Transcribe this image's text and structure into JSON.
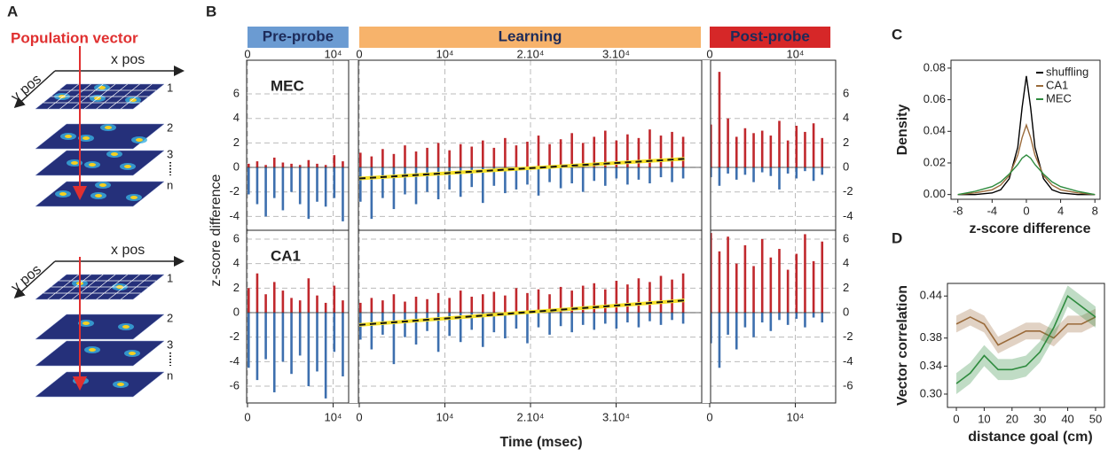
{
  "diagram": {
    "panel_label": "A",
    "title": "Population vector",
    "groups": [
      {
        "x_axis": "x pos",
        "y_axis": "y pos",
        "layers": [
          "1",
          "2",
          "3",
          "n"
        ]
      },
      {
        "x_axis": "x pos",
        "y_axis": "y pos",
        "layers": [
          "1",
          "2",
          "3",
          "n"
        ]
      }
    ]
  },
  "chart_data": [
    {
      "type": "diverging-bar",
      "panel_label": "B",
      "y_label": "z-score difference",
      "x_label": "Time (msec)",
      "grid": true,
      "positive_color": "#c0282d",
      "negative_color": "#3d6fae",
      "trend_color": "#f5e12a",
      "phases": [
        {
          "name": "Pre-probe",
          "color": "#6b9bd2",
          "xlim": [
            0,
            11800
          ],
          "xticks": [
            0,
            {
              "value": 10000,
              "label": "10⁴"
            }
          ],
          "x": [
            0,
            1000,
            2000,
            3000,
            4000,
            5000,
            6000,
            7000,
            8000,
            9000,
            10000,
            11000
          ]
        },
        {
          "name": "Learning",
          "color": "#f7b36b",
          "xlim": [
            0,
            39900
          ],
          "xticks": [
            0,
            {
              "value": 10000,
              "label": "10⁴"
            },
            {
              "value": 20000,
              "label": "2.10⁴"
            },
            {
              "value": 30000,
              "label": "3.10⁴"
            }
          ],
          "x": [
            0,
            1300,
            2600,
            3900,
            5200,
            6500,
            7800,
            9100,
            10400,
            11700,
            13000,
            14300,
            15600,
            16900,
            18200,
            19500,
            20800,
            22100,
            23400,
            24700,
            26000,
            27300,
            28600,
            29900,
            31200,
            32500,
            33800,
            35100,
            36400,
            37700
          ]
        },
        {
          "name": "Post-probe",
          "color": "#d62728",
          "xlim": [
            0,
            14100
          ],
          "xticks": [
            0,
            {
              "value": 10000,
              "label": "10⁴"
            }
          ],
          "x": [
            0,
            1000,
            2000,
            3000,
            4000,
            5000,
            6000,
            7000,
            8000,
            9000,
            10000,
            11000,
            12000,
            13000
          ]
        }
      ],
      "panels": [
        {
          "title": "MEC",
          "ylim": [
            -5.13,
            8.75
          ],
          "yticks": [
            6,
            4,
            2,
            0,
            -2,
            -4
          ],
          "segments": [
            {
              "positive": [
                0.3,
                0.5,
                0.2,
                0.8,
                0.4,
                0.3,
                0.2,
                0.6,
                0.3,
                0.2,
                1.0,
                0.5
              ],
              "negative": [
                -2.2,
                -3.0,
                -4.0,
                -2.5,
                -3.5,
                -2.0,
                -3.0,
                -4.2,
                -2.8,
                -3.2,
                -2.5,
                -4.4
              ]
            },
            {
              "positive": [
                1.2,
                0.9,
                1.5,
                1.1,
                1.8,
                1.3,
                1.6,
                2.0,
                1.4,
                1.9,
                1.7,
                2.2,
                1.6,
                2.4,
                1.8,
                2.1,
                2.6,
                1.9,
                2.3,
                2.8,
                2.0,
                2.5,
                3.0,
                2.2,
                2.7,
                2.4,
                3.1,
                2.6,
                2.9,
                2.5
              ],
              "negative": [
                -2.8,
                -4.2,
                -2.5,
                -3.4,
                -2.2,
                -3.0,
                -2.0,
                -2.6,
                -1.8,
                -2.4,
                -1.6,
                -2.9,
                -1.5,
                -2.1,
                -1.8,
                -1.4,
                -2.3,
                -1.2,
                -1.7,
                -1.3,
                -2.0,
                -1.1,
                -1.5,
                -0.9,
                -1.4,
                -1.0,
                -1.3,
                -0.8,
                -1.2,
                -0.9
              ]
            },
            {
              "positive": [
                3.5,
                7.8,
                4.0,
                2.5,
                3.2,
                2.8,
                3.0,
                2.6,
                3.8,
                2.2,
                3.4,
                2.9,
                3.6,
                2.4
              ],
              "negative": [
                -0.8,
                -1.5,
                -0.5,
                -1.0,
                -0.6,
                -1.2,
                -0.4,
                -0.7,
                -1.8,
                -0.5,
                -0.9,
                -0.3,
                -1.1,
                -0.6
              ]
            }
          ],
          "trend": {
            "x": [
              0,
              38000
            ],
            "values": [
              -0.9,
              0.7
            ]
          }
        },
        {
          "title": "CA1",
          "ylim": [
            -7.37,
            6.72
          ],
          "yticks": [
            6,
            4,
            2,
            0,
            -2,
            -4,
            -6
          ],
          "segments": [
            {
              "positive": [
                2.0,
                3.2,
                1.5,
                2.5,
                1.8,
                1.2,
                1.0,
                2.8,
                1.4,
                0.8,
                2.2,
                1.0
              ],
              "negative": [
                -4.5,
                -5.5,
                -3.8,
                -6.5,
                -4.0,
                -5.0,
                -3.5,
                -6.0,
                -4.8,
                -7.0,
                -3.2,
                -5.2
              ]
            },
            {
              "positive": [
                0.8,
                1.2,
                1.0,
                1.5,
                0.9,
                1.3,
                1.1,
                1.6,
                1.2,
                1.8,
                1.3,
                1.5,
                1.7,
                1.4,
                2.0,
                1.6,
                1.9,
                1.5,
                2.1,
                1.8,
                2.2,
                2.4,
                1.9,
                2.6,
                2.3,
                2.8,
                2.5,
                3.0,
                2.7,
                3.2
              ],
              "negative": [
                -2.2,
                -3.0,
                -1.8,
                -4.2,
                -2.0,
                -2.6,
                -1.5,
                -3.2,
                -1.9,
                -2.4,
                -1.4,
                -2.8,
                -1.6,
                -2.1,
                -1.3,
                -2.5,
                -1.2,
                -1.8,
                -1.1,
                -1.6,
                -1.0,
                -1.4,
                -0.9,
                -1.3,
                -0.8,
                -1.2,
                -0.7,
                -1.0,
                -0.6,
                -0.9
              ]
            },
            {
              "positive": [
                6.5,
                5.0,
                6.2,
                4.0,
                5.5,
                3.8,
                6.0,
                4.5,
                5.2,
                3.5,
                4.8,
                6.4,
                4.2,
                5.8
              ],
              "negative": [
                -2.5,
                -4.5,
                -1.8,
                -3.0,
                -1.2,
                -2.0,
                -0.8,
                -1.5,
                -0.6,
                -1.0,
                -0.5,
                -1.2,
                -0.4,
                -0.8
              ]
            }
          ],
          "trend": {
            "x": [
              0,
              38000
            ],
            "values": [
              -1.0,
              1.0
            ]
          }
        }
      ]
    },
    {
      "type": "line",
      "panel_label": "C",
      "y_label": "Density",
      "x_label": "z-score difference",
      "legend": "upper right",
      "xlim": [
        -8.8,
        8.6
      ],
      "xticks": [
        -8,
        -4,
        0,
        4,
        8
      ],
      "ylim": [
        -0.003,
        0.085
      ],
      "yticks": [
        {
          "value": 0,
          "label": "0.00"
        },
        {
          "value": 0.02,
          "label": "0.02"
        },
        {
          "value": 0.04,
          "label": "0.04"
        },
        {
          "value": 0.06,
          "label": "0.06"
        },
        {
          "value": 0.08,
          "label": "0.08"
        }
      ],
      "x": [
        -8,
        -6,
        -4,
        -3,
        -2,
        -1,
        -0.5,
        0,
        0.5,
        1,
        2,
        3,
        4,
        6,
        8
      ],
      "series": [
        {
          "name": "shuffling",
          "color": "#000000",
          "values": [
            0,
            0,
            0.001,
            0.003,
            0.01,
            0.03,
            0.055,
            0.075,
            0.055,
            0.03,
            0.01,
            0.003,
            0.001,
            0,
            0
          ]
        },
        {
          "name": "CA1",
          "color": "#9a6a3a",
          "values": [
            0,
            0.001,
            0.003,
            0.006,
            0.012,
            0.025,
            0.036,
            0.044,
            0.036,
            0.025,
            0.012,
            0.006,
            0.003,
            0.001,
            0
          ]
        },
        {
          "name": "MEC",
          "color": "#2e8b3e",
          "values": [
            0,
            0.002,
            0.005,
            0.008,
            0.013,
            0.019,
            0.023,
            0.025,
            0.023,
            0.019,
            0.013,
            0.008,
            0.005,
            0.002,
            0
          ]
        }
      ]
    },
    {
      "type": "band-line",
      "panel_label": "D",
      "y_label": "Vector correlation",
      "x_label": "distance goal (cm)",
      "xlim": [
        -3.2,
        53.2
      ],
      "xticks": [
        0,
        10,
        20,
        30,
        40,
        50
      ],
      "ylim": [
        0.281,
        0.458
      ],
      "yticks": [
        {
          "value": 0.3,
          "label": "0.30"
        },
        {
          "value": 0.34,
          "label": "0.34"
        },
        {
          "value": 0.38,
          "label": "0.38"
        },
        {
          "value": 0.44,
          "label": "0.44"
        }
      ],
      "x": [
        0,
        5,
        10,
        15,
        20,
        25,
        30,
        35,
        40,
        45,
        50
      ],
      "series": [
        {
          "color": "#9a6a3a",
          "values": [
            0.4,
            0.41,
            0.4,
            0.37,
            0.38,
            0.39,
            0.39,
            0.38,
            0.4,
            0.4,
            0.41
          ],
          "errors": [
            0.012,
            0.012,
            0.012,
            0.012,
            0.012,
            0.012,
            0.012,
            0.012,
            0.012,
            0.012,
            0.012
          ]
        },
        {
          "color": "#2e8b3e",
          "values": [
            0.315,
            0.33,
            0.355,
            0.335,
            0.335,
            0.34,
            0.36,
            0.395,
            0.44,
            0.425,
            0.41
          ],
          "errors": [
            0.015,
            0.015,
            0.015,
            0.015,
            0.015,
            0.015,
            0.015,
            0.015,
            0.015,
            0.015,
            0.015
          ]
        }
      ]
    }
  ]
}
